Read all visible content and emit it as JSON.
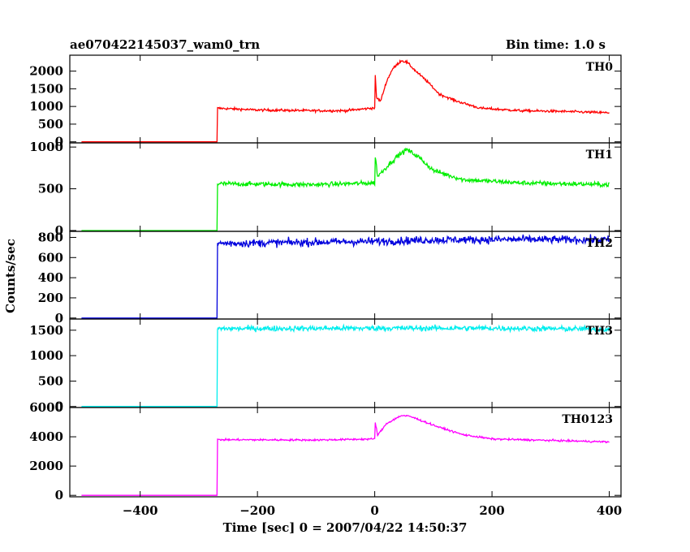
{
  "header": {
    "title": "ae070422145037_wam0_trn",
    "bin_time": "Bin time: 1.0 s"
  },
  "chart_data": {
    "type": "line",
    "xlabel": "Time [sec] 0 = 2007/04/22 14:50:37",
    "ylabel": "Counts/sec",
    "xlim": [
      -520,
      420
    ],
    "x_ticks": [
      -400,
      -200,
      0,
      200,
      400
    ],
    "x_tick_labels": [
      "−400",
      "−200",
      "0",
      "200",
      "400"
    ],
    "trigger_time": -268,
    "panels": [
      {
        "name": "TH0",
        "color": "#ff0000",
        "ylim": [
          -30,
          2450
        ],
        "y_ticks": [
          0,
          500,
          1000,
          1500,
          2000
        ],
        "y_tick_labels": [
          "0",
          "500",
          "1000",
          "1500",
          "2000"
        ],
        "pre_level": 0,
        "noise": 25,
        "profile": [
          [
            -268,
            950
          ],
          [
            -200,
            900
          ],
          [
            -100,
            880
          ],
          [
            -50,
            880
          ],
          [
            0,
            960
          ],
          [
            1,
            1850
          ],
          [
            3,
            1250
          ],
          [
            10,
            1150
          ],
          [
            20,
            1700
          ],
          [
            30,
            2050
          ],
          [
            45,
            2300
          ],
          [
            55,
            2250
          ],
          [
            70,
            2000
          ],
          [
            90,
            1700
          ],
          [
            110,
            1350
          ],
          [
            140,
            1150
          ],
          [
            180,
            950
          ],
          [
            250,
            880
          ],
          [
            320,
            860
          ],
          [
            400,
            820
          ]
        ]
      },
      {
        "name": "TH1",
        "color": "#00ee00",
        "ylim": [
          -10,
          1050
        ],
        "y_ticks": [
          0,
          500,
          1000
        ],
        "y_tick_labels": [
          "0",
          "500",
          "1000"
        ],
        "pre_level": 0,
        "noise": 20,
        "profile": [
          [
            -268,
            560
          ],
          [
            -100,
            550
          ],
          [
            0,
            570
          ],
          [
            1,
            880
          ],
          [
            5,
            650
          ],
          [
            20,
            760
          ],
          [
            40,
            900
          ],
          [
            55,
            970
          ],
          [
            75,
            880
          ],
          [
            100,
            720
          ],
          [
            150,
            610
          ],
          [
            250,
            570
          ],
          [
            400,
            550
          ]
        ]
      },
      {
        "name": "TH2",
        "color": "#0000dd",
        "ylim": [
          -10,
          860
        ],
        "y_ticks": [
          0,
          200,
          400,
          600,
          800
        ],
        "y_tick_labels": [
          "0",
          "200",
          "400",
          "600",
          "800"
        ],
        "pre_level": 0,
        "noise": 28,
        "profile": [
          [
            -268,
            740
          ],
          [
            0,
            760
          ],
          [
            100,
            775
          ],
          [
            250,
            780
          ],
          [
            400,
            775
          ]
        ]
      },
      {
        "name": "TH3",
        "color": "#00eeee",
        "ylim": [
          -20,
          1720
        ],
        "y_ticks": [
          0,
          500,
          1000,
          1500
        ],
        "y_tick_labels": [
          "0",
          "500",
          "1000",
          "1500"
        ],
        "pre_level": 0,
        "noise": 38,
        "profile": [
          [
            -268,
            1530
          ],
          [
            0,
            1540
          ],
          [
            200,
            1540
          ],
          [
            400,
            1520
          ]
        ]
      },
      {
        "name": "TH0123",
        "color": "#ff00ff",
        "ylim": [
          -100,
          6000
        ],
        "y_ticks": [
          0,
          2000,
          4000,
          6000
        ],
        "y_tick_labels": [
          "0",
          "2000",
          "4000",
          "6000"
        ],
        "pre_level": 0,
        "noise": 45,
        "profile": [
          [
            -268,
            3800
          ],
          [
            -100,
            3780
          ],
          [
            0,
            3850
          ],
          [
            1,
            5000
          ],
          [
            5,
            4100
          ],
          [
            20,
            4900
          ],
          [
            45,
            5450
          ],
          [
            60,
            5400
          ],
          [
            80,
            5100
          ],
          [
            110,
            4650
          ],
          [
            150,
            4150
          ],
          [
            200,
            3850
          ],
          [
            300,
            3750
          ],
          [
            400,
            3650
          ]
        ]
      }
    ]
  }
}
